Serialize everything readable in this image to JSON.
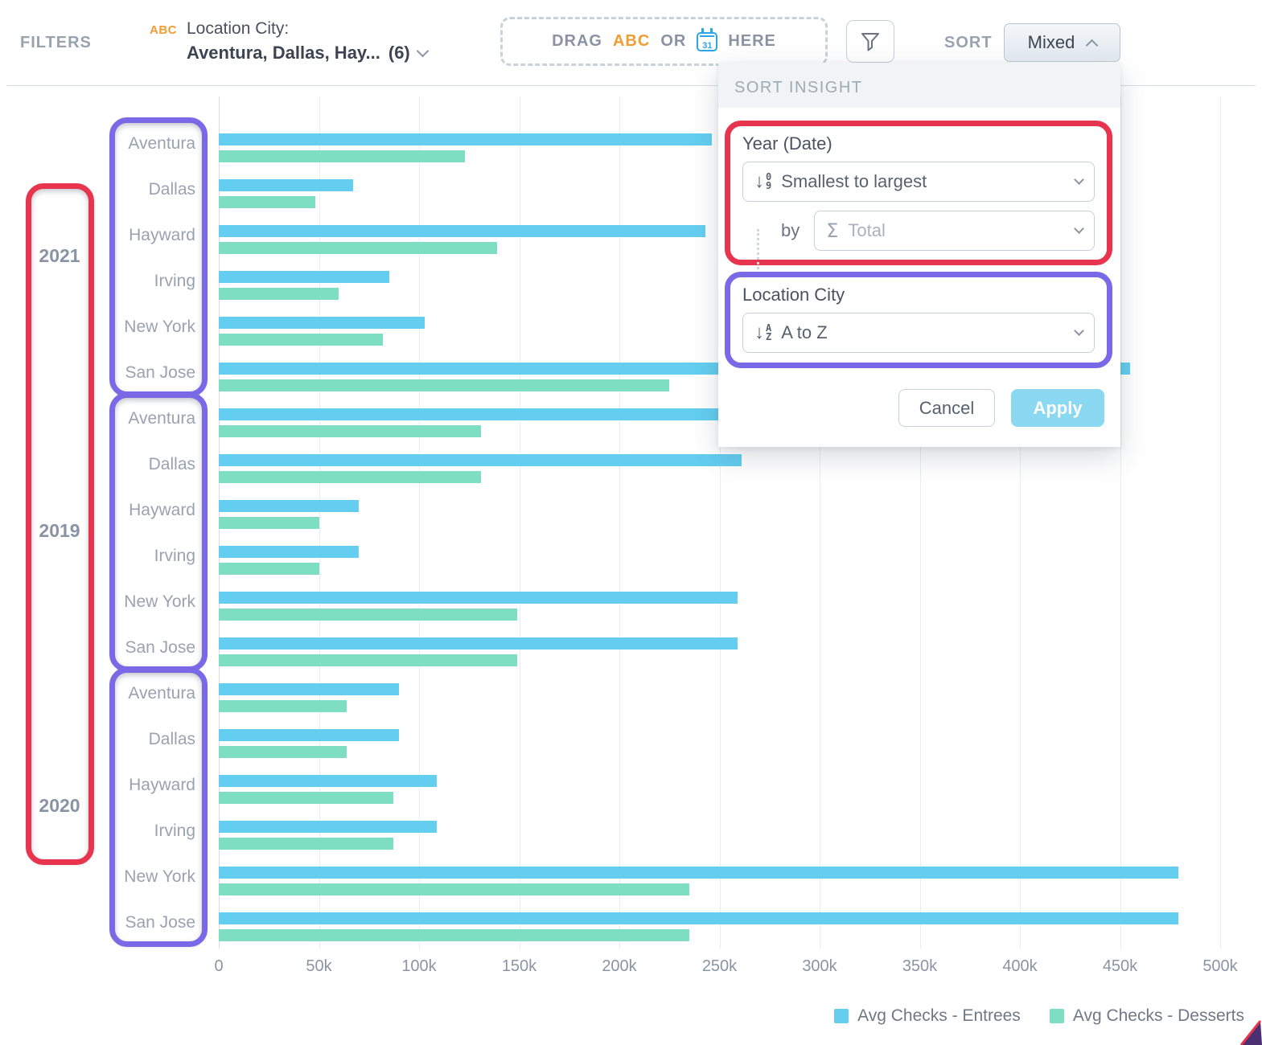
{
  "header": {
    "filters_label": "FILTERS",
    "filter": {
      "type_tag": "ABC",
      "name": "Location City:",
      "value": "Aventura, Dallas, Hay...",
      "count": "(6)"
    },
    "dropzone": {
      "drag": "DRAG",
      "abc": "ABC",
      "or": "OR",
      "calendar_day": "31",
      "here": "HERE"
    },
    "sort_label": "SORT",
    "sort_value": "Mixed"
  },
  "sort_panel": {
    "title": "SORT INSIGHT",
    "year_section": {
      "label": "Year (Date)",
      "order_value": "Smallest to largest",
      "order_icon_digits": [
        "0",
        "9"
      ],
      "by_label": "by",
      "by_value": "Total"
    },
    "city_section": {
      "label": "Location City",
      "order_value": "A to Z",
      "order_icon_letters": [
        "A",
        "Z"
      ]
    },
    "cancel_label": "Cancel",
    "apply_label": "Apply"
  },
  "chart_data": {
    "type": "bar",
    "orientation": "horizontal",
    "x_axis": {
      "ticks": [
        "0",
        "50k",
        "100k",
        "150k",
        "200k",
        "250k",
        "300k",
        "350k",
        "400k",
        "450k",
        "500k"
      ],
      "max_k": 500,
      "grid": true
    },
    "series": [
      {
        "name": "Avg Checks - Entrees",
        "color": "#63CEF0"
      },
      {
        "name": "Avg Checks - Desserts",
        "color": "#7EDEC1"
      }
    ],
    "legend_position": "bottom-right",
    "groups": [
      {
        "year": "2021",
        "cities": [
          "Aventura",
          "Dallas",
          "Hayward",
          "Irving",
          "New York",
          "San Jose"
        ],
        "entrees_k": [
          246,
          67,
          243,
          85,
          103,
          455
        ],
        "desserts_k": [
          123,
          48,
          139,
          60,
          82,
          225
        ]
      },
      {
        "year": "2019",
        "cities": [
          "Aventura",
          "Dallas",
          "Hayward",
          "Irving",
          "New York",
          "San Jose"
        ],
        "entrees_k": [
          253,
          261,
          70,
          70,
          259,
          259
        ],
        "desserts_k": [
          131,
          131,
          50,
          50,
          149,
          149
        ]
      },
      {
        "year": "2020",
        "cities": [
          "Aventura",
          "Dallas",
          "Hayward",
          "Irving",
          "New York",
          "San Jose"
        ],
        "entrees_k": [
          90,
          90,
          109,
          109,
          479,
          479
        ],
        "desserts_k": [
          64,
          64,
          87,
          87,
          235,
          235
        ]
      }
    ]
  },
  "colors": {
    "entrees_bar": "#63CEF0",
    "desserts_bar": "#7EDEC1",
    "annotation_red": "#E8354F",
    "annotation_purple": "#7A69E6",
    "accent_orange": "#F09D33",
    "calendar_blue": "#2BA7E8",
    "apply_button": "#8AD8F2"
  }
}
